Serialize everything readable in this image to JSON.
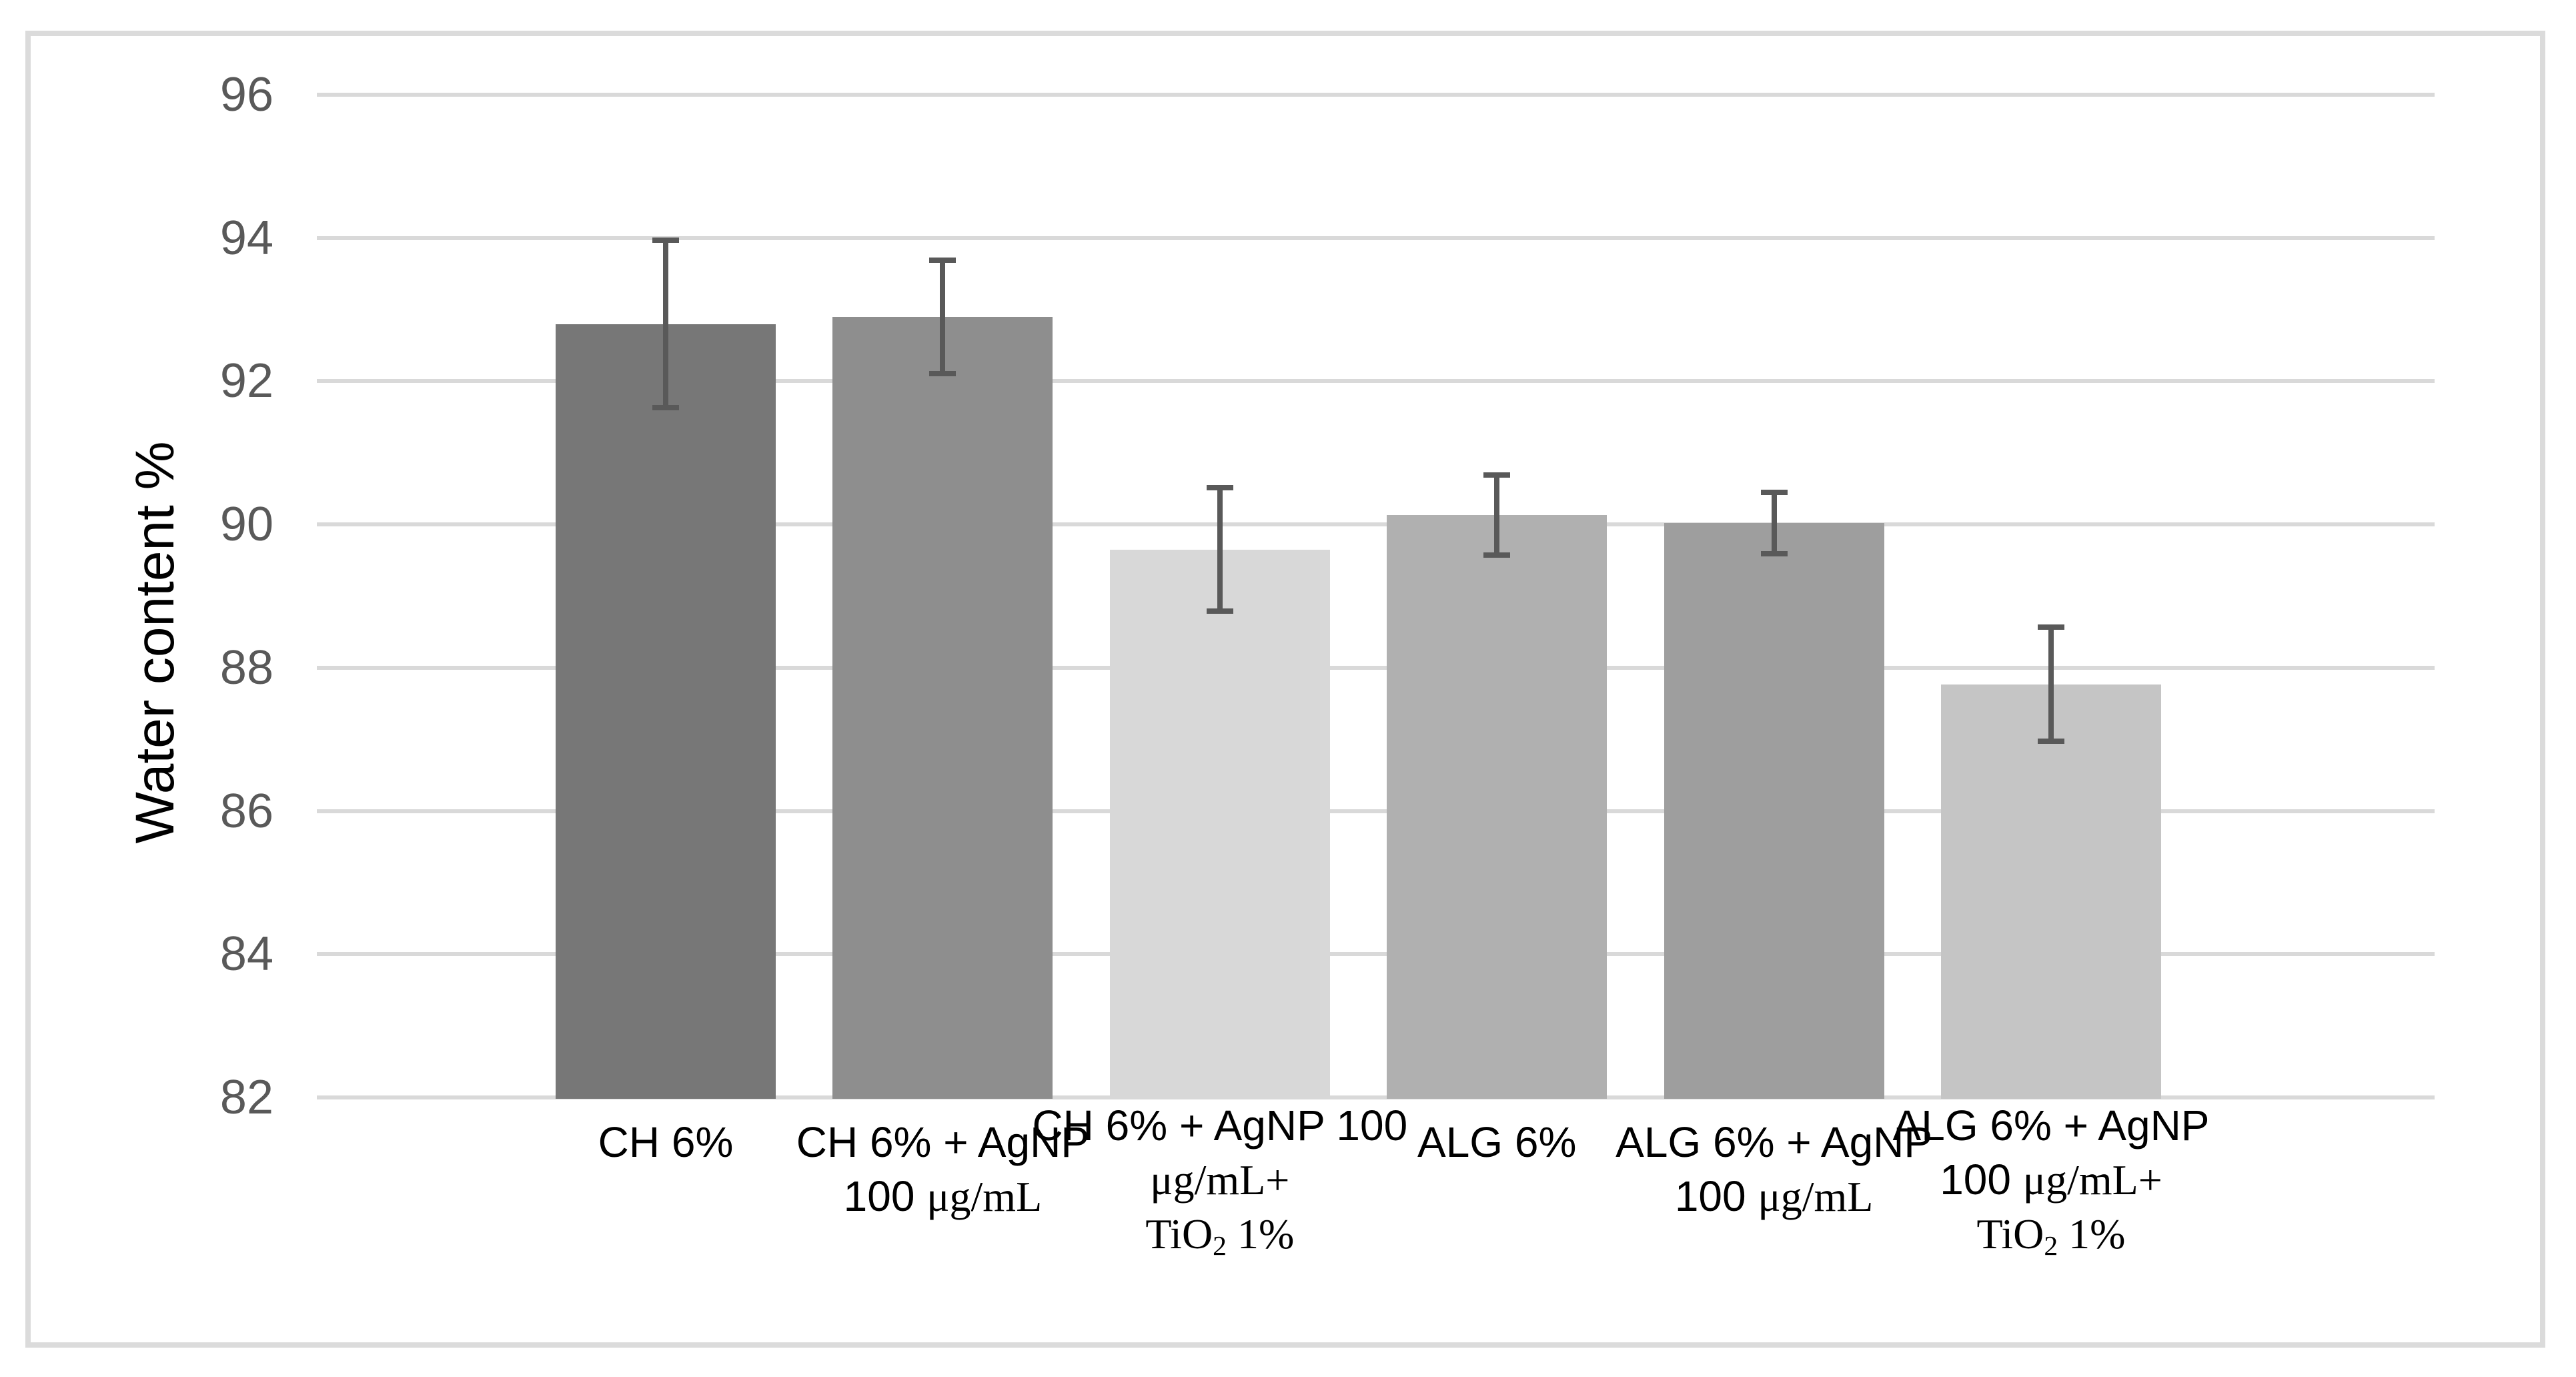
{
  "chart_data": {
    "type": "bar",
    "title": "",
    "xlabel": "",
    "ylabel": "Water content %",
    "ylim": [
      82,
      96
    ],
    "ytick_step": 2,
    "yticks": [
      96,
      94,
      92,
      90,
      88,
      86,
      84,
      82
    ],
    "grid": "horizontal-only",
    "legend": "none",
    "categories": [
      "CH 6%",
      "CH 6% + AgNP 100 μg/mL",
      "CH 6% + AgNP 100 μg/mL+ TiO2 1%",
      "ALG 6%",
      "ALG 6% + AgNP 100 μg/mL",
      "ALG 6% + AgNP 100 μg/mL+ TiO2 1%"
    ],
    "values": [
      92.8,
      92.9,
      89.65,
      90.13,
      90.02,
      87.77
    ],
    "errors": [
      1.17,
      0.79,
      0.86,
      0.56,
      0.43,
      0.8
    ],
    "bar_colors": [
      "#777777",
      "#8E8E8E",
      "#D8D8D8",
      "#B0B0B0",
      "#9E9E9E",
      "#C5C5C5"
    ],
    "error_bar_color": "#595959",
    "gridline_color": "#D9D9D9",
    "tick_label_color": "#595959",
    "axis_title_color": "#000000",
    "frame_border_color": "#DBDBDB",
    "label_lines": [
      [
        [
          {
            "t": "CH 6%",
            "f": "sans"
          }
        ]
      ],
      [
        [
          {
            "t": "CH 6% + AgNP",
            "f": "sans"
          }
        ],
        [
          {
            "t": "100 ",
            "f": "sans"
          },
          {
            "t": "μg/mL",
            "f": "serif"
          }
        ]
      ],
      [
        [
          {
            "t": "CH 6% + AgNP 100",
            "f": "sans"
          }
        ],
        [
          {
            "t": "μg/mL+",
            "f": "serif"
          }
        ],
        [
          {
            "t": "TiO",
            "f": "serif"
          },
          {
            "t": "2",
            "f": "serif",
            "sub": true
          },
          {
            "t": " 1%",
            "f": "serif"
          }
        ]
      ],
      [
        [
          {
            "t": "ALG 6%",
            "f": "sans"
          }
        ]
      ],
      [
        [
          {
            "t": "ALG 6% + AgNP",
            "f": "sans"
          }
        ],
        [
          {
            "t": "100 ",
            "f": "sans"
          },
          {
            "t": "μg/mL",
            "f": "serif"
          }
        ]
      ],
      [
        [
          {
            "t": "ALG 6% + AgNP",
            "f": "sans"
          }
        ],
        [
          {
            "t": "100 ",
            "f": "sans"
          },
          {
            "t": "μg/mL+",
            "f": "serif"
          }
        ],
        [
          {
            "t": "TiO",
            "f": "serif"
          },
          {
            "t": "2",
            "f": "serif",
            "sub": true
          },
          {
            "t": " 1%",
            "f": "serif"
          }
        ]
      ]
    ]
  }
}
